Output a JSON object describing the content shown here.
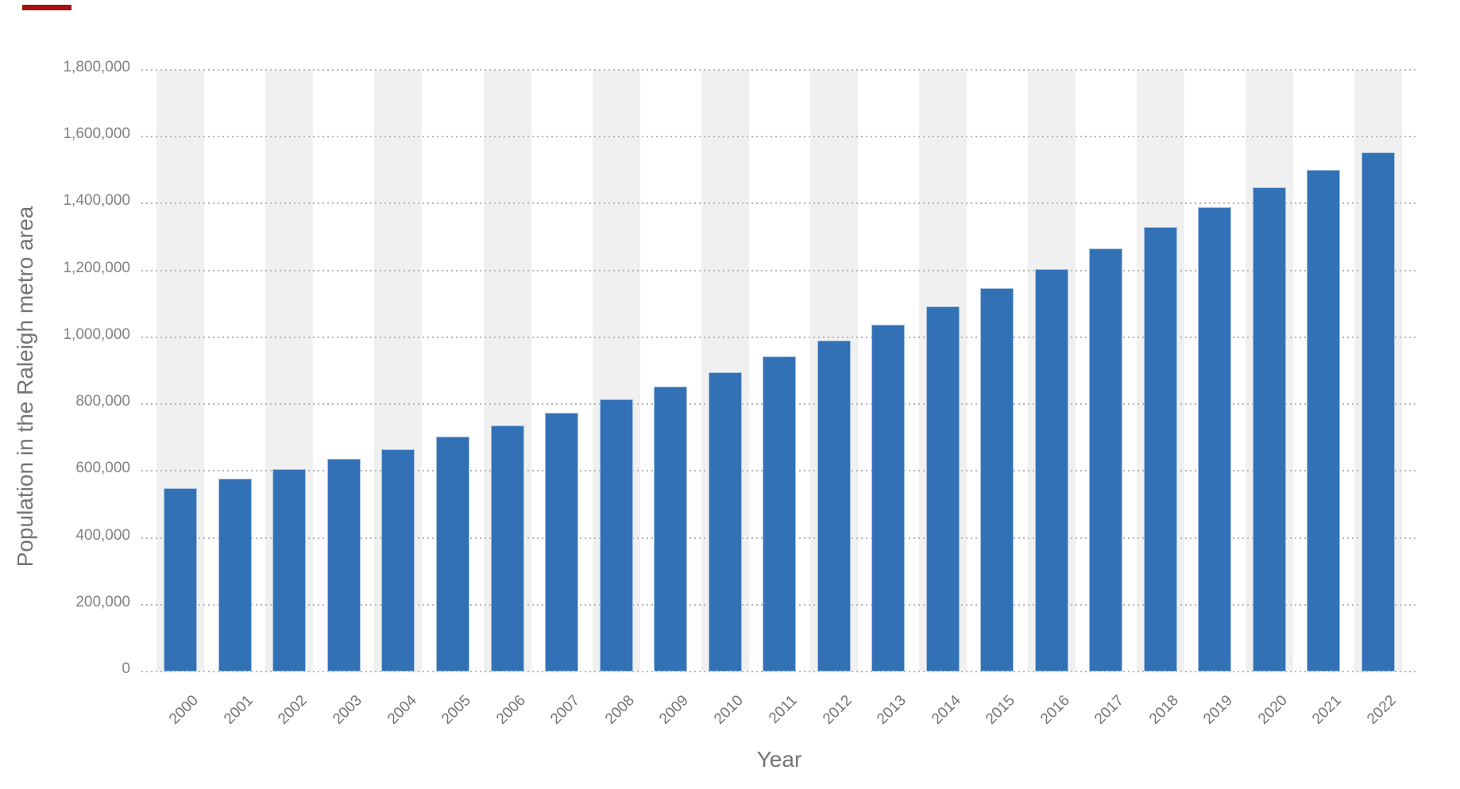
{
  "decorations": {
    "top_left_dash_color": "#a61212"
  },
  "chart_data": {
    "type": "bar",
    "title": "",
    "xlabel": "Year",
    "ylabel": "Population in the Raleigh metro area",
    "categories": [
      "2000",
      "2001",
      "2002",
      "2003",
      "2004",
      "2005",
      "2006",
      "2007",
      "2008",
      "2009",
      "2010",
      "2011",
      "2012",
      "2013",
      "2014",
      "2015",
      "2016",
      "2017",
      "2018",
      "2019",
      "2020",
      "2021",
      "2022"
    ],
    "values": [
      548000,
      576000,
      606000,
      636000,
      665000,
      702000,
      736000,
      774000,
      815000,
      853000,
      896000,
      943000,
      990000,
      1039000,
      1092000,
      1148000,
      1205000,
      1266000,
      1329000,
      1390000,
      1448000,
      1501000,
      1552000
    ],
    "ylim": [
      0,
      1800000
    ],
    "ytick_interval": 200000,
    "ytick_labels": [
      "1,800,000",
      "1,600,000",
      "1,400,000",
      "1,200,000",
      "1,000,000",
      "800,000",
      "600,000",
      "400,000",
      "200,000",
      "0"
    ],
    "grid": "horizontal dotted",
    "legend": "none",
    "bar_color": "#3271b6",
    "bar_border_color": "#a6c1e1",
    "stripe_color": "#f0f0f0",
    "stripe_note": "alternating light-gray vertical bands behind even-year columns",
    "axis_text_color": "#828282",
    "title_text_color": "#757575"
  }
}
